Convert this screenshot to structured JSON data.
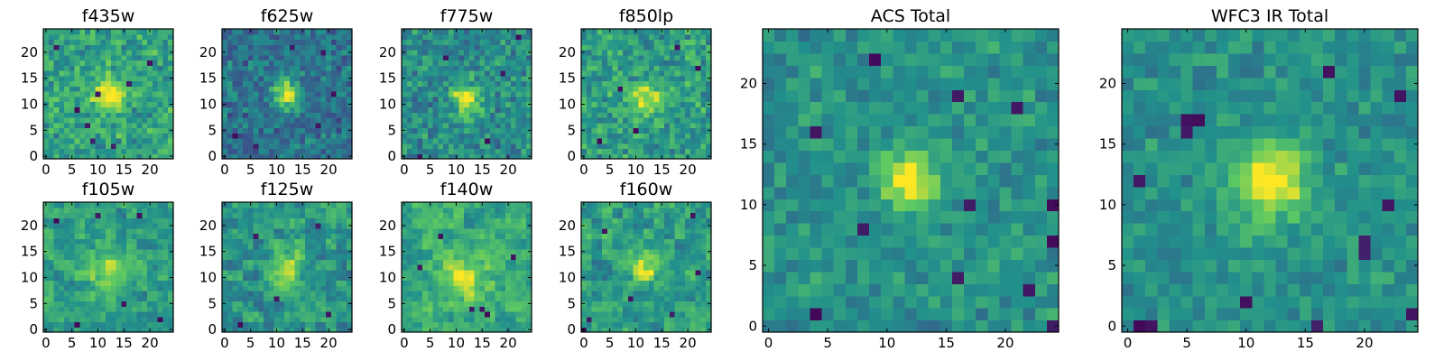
{
  "figure": {
    "kind": "image-cutout grid (pixel maps)",
    "colormap": "viridis",
    "colormap_stops": [
      "#440154",
      "#3b528b",
      "#21918c",
      "#5ec962",
      "#fde725"
    ]
  },
  "chart_data": [
    {
      "type": "heatmap",
      "id": "f435w",
      "title": "f435w",
      "size": "small",
      "grid_size": 25,
      "xlim": [
        -0.5,
        24.5
      ],
      "ylim": [
        -0.5,
        24.5
      ],
      "xticks": [
        0,
        5,
        10,
        15,
        20
      ],
      "yticks": [
        0,
        5,
        10,
        15,
        20
      ],
      "source": {
        "center": [
          12,
          12
        ],
        "sigma": 2.0,
        "peak": 0.45
      },
      "background": {
        "mean": 0.58,
        "noise": 0.22,
        "cell": 1,
        "seed": 11
      },
      "dark_pixels": [
        [
          9,
          3
        ],
        [
          13,
          2
        ],
        [
          10,
          12
        ],
        [
          16,
          14
        ],
        [
          6,
          9
        ],
        [
          20,
          18
        ],
        [
          2,
          21
        ],
        [
          8,
          6
        ]
      ]
    },
    {
      "type": "heatmap",
      "id": "f625w",
      "title": "f625w",
      "size": "small",
      "grid_size": 25,
      "xlim": [
        -0.5,
        24.5
      ],
      "ylim": [
        -0.5,
        24.5
      ],
      "xticks": [
        0,
        5,
        10,
        15,
        20
      ],
      "yticks": [
        0,
        5,
        10,
        15,
        20
      ],
      "source": {
        "center": [
          12,
          12
        ],
        "sigma": 1.8,
        "peak": 0.55
      },
      "background": {
        "mean": 0.38,
        "noise": 0.2,
        "cell": 1,
        "seed": 23
      },
      "dark_pixels": [
        [
          13,
          21
        ],
        [
          19,
          20
        ],
        [
          6,
          2
        ],
        [
          2,
          4
        ],
        [
          18,
          6
        ],
        [
          21,
          12
        ]
      ]
    },
    {
      "type": "heatmap",
      "id": "f775w",
      "title": "f775w",
      "size": "small",
      "grid_size": 25,
      "xlim": [
        -0.5,
        24.5
      ],
      "ylim": [
        -0.5,
        24.5
      ],
      "xticks": [
        0,
        5,
        10,
        15,
        20
      ],
      "yticks": [
        0,
        5,
        10,
        15,
        20
      ],
      "source": {
        "center": [
          12,
          11
        ],
        "sigma": 2.0,
        "peak": 0.5
      },
      "background": {
        "mean": 0.48,
        "noise": 0.22,
        "cell": 1,
        "seed": 37
      },
      "dark_pixels": [
        [
          22,
          23
        ],
        [
          16,
          3
        ],
        [
          3,
          0
        ],
        [
          19,
          16
        ],
        [
          8,
          19
        ]
      ]
    },
    {
      "type": "heatmap",
      "id": "f850lp",
      "title": "f850lp",
      "size": "small",
      "grid_size": 25,
      "xlim": [
        -0.5,
        24.5
      ],
      "ylim": [
        -0.5,
        24.5
      ],
      "xticks": [
        0,
        5,
        10,
        15,
        20
      ],
      "yticks": [
        0,
        5,
        10,
        15,
        20
      ],
      "source": {
        "center": [
          12,
          11
        ],
        "sigma": 2.2,
        "peak": 0.35
      },
      "background": {
        "mean": 0.55,
        "noise": 0.22,
        "cell": 1,
        "seed": 41
      },
      "dark_pixels": [
        [
          7,
          13
        ],
        [
          22,
          17
        ],
        [
          10,
          5
        ],
        [
          3,
          3
        ],
        [
          18,
          21
        ]
      ]
    },
    {
      "type": "heatmap",
      "id": "f105w",
      "title": "f105w",
      "size": "small",
      "grid_size": 25,
      "xlim": [
        -0.5,
        24.5
      ],
      "ylim": [
        -0.5,
        24.5
      ],
      "xticks": [
        0,
        5,
        10,
        15,
        20
      ],
      "yticks": [
        0,
        5,
        10,
        15,
        20
      ],
      "source": {
        "center": [
          12,
          12
        ],
        "sigma": 3.0,
        "peak": 0.3
      },
      "background": {
        "mean": 0.55,
        "noise": 0.18,
        "cell": 2,
        "seed": 53
      },
      "dark_pixels": [
        [
          2,
          21
        ],
        [
          18,
          22
        ],
        [
          22,
          2
        ],
        [
          6,
          1
        ],
        [
          15,
          5
        ],
        [
          10,
          22
        ]
      ]
    },
    {
      "type": "heatmap",
      "id": "f125w",
      "title": "f125w",
      "size": "small",
      "grid_size": 25,
      "xlim": [
        -0.5,
        24.5
      ],
      "ylim": [
        -0.5,
        24.5
      ],
      "xticks": [
        0,
        5,
        10,
        15,
        20
      ],
      "yticks": [
        0,
        5,
        10,
        15,
        20
      ],
      "source": {
        "center": [
          12,
          12
        ],
        "sigma": 2.4,
        "peak": 0.4
      },
      "background": {
        "mean": 0.52,
        "noise": 0.2,
        "cell": 2,
        "seed": 67
      },
      "dark_pixels": [
        [
          6,
          18
        ],
        [
          18,
          20
        ],
        [
          3,
          1
        ],
        [
          20,
          3
        ],
        [
          10,
          6
        ]
      ]
    },
    {
      "type": "heatmap",
      "id": "f140w",
      "title": "f140w",
      "size": "small",
      "grid_size": 25,
      "xlim": [
        -0.5,
        24.5
      ],
      "ylim": [
        -0.5,
        24.5
      ],
      "xticks": [
        0,
        5,
        10,
        15,
        20
      ],
      "yticks": [
        0,
        5,
        10,
        15,
        20
      ],
      "source": {
        "center": [
          12,
          10
        ],
        "sigma": 3.2,
        "peak": 0.3
      },
      "background": {
        "mean": 0.6,
        "noise": 0.18,
        "cell": 2,
        "seed": 71
      },
      "dark_pixels": [
        [
          13,
          4
        ],
        [
          15,
          4
        ],
        [
          16,
          3
        ],
        [
          3,
          12
        ],
        [
          21,
          14
        ],
        [
          7,
          18
        ]
      ]
    },
    {
      "type": "heatmap",
      "id": "f160w",
      "title": "f160w",
      "size": "small",
      "grid_size": 25,
      "xlim": [
        -0.5,
        24.5
      ],
      "ylim": [
        -0.5,
        24.5
      ],
      "xticks": [
        0,
        5,
        10,
        15,
        20
      ],
      "yticks": [
        0,
        5,
        10,
        15,
        20
      ],
      "source": {
        "center": [
          12,
          12
        ],
        "sigma": 2.0,
        "peak": 0.4
      },
      "background": {
        "mean": 0.55,
        "noise": 0.2,
        "cell": 2,
        "seed": 83
      },
      "dark_pixels": [
        [
          0,
          0
        ],
        [
          1,
          2
        ],
        [
          21,
          22
        ],
        [
          17,
          3
        ],
        [
          9,
          6
        ],
        [
          22,
          11
        ],
        [
          4,
          19
        ]
      ]
    },
    {
      "type": "heatmap",
      "id": "acs-total",
      "title": "ACS Total",
      "size": "large",
      "grid_size": 25,
      "xlim": [
        -0.5,
        24.5
      ],
      "ylim": [
        -0.5,
        24.5
      ],
      "xticks": [
        0,
        5,
        10,
        15,
        20
      ],
      "yticks": [
        0,
        5,
        10,
        15,
        20
      ],
      "source": {
        "center": [
          12,
          12
        ],
        "sigma": 1.6,
        "peak": 0.55
      },
      "background": {
        "mean": 0.5,
        "noise": 0.16,
        "cell": 1,
        "seed": 97
      },
      "dark_pixels": [
        [
          9,
          22
        ],
        [
          16,
          19
        ],
        [
          21,
          18
        ],
        [
          17,
          10
        ],
        [
          24,
          10
        ],
        [
          4,
          16
        ],
        [
          8,
          8
        ],
        [
          16,
          4
        ],
        [
          24,
          0
        ],
        [
          4,
          1
        ],
        [
          22,
          3
        ],
        [
          24,
          7
        ]
      ]
    },
    {
      "type": "heatmap",
      "id": "wfc3-ir-total",
      "title": "WFC3 IR Total",
      "size": "large",
      "grid_size": 25,
      "xlim": [
        -0.5,
        24.5
      ],
      "ylim": [
        -0.5,
        24.5
      ],
      "xticks": [
        0,
        5,
        10,
        15,
        20
      ],
      "yticks": [
        0,
        5,
        10,
        15,
        20
      ],
      "source": {
        "center": [
          12,
          12
        ],
        "sigma": 2.3,
        "peak": 0.5
      },
      "background": {
        "mean": 0.5,
        "noise": 0.14,
        "cell": 1,
        "seed": 109
      },
      "dark_pixels": [
        [
          5,
          17
        ],
        [
          6,
          17
        ],
        [
          5,
          16
        ],
        [
          1,
          12
        ],
        [
          22,
          10
        ],
        [
          20,
          7
        ],
        [
          20,
          6
        ],
        [
          24,
          1
        ],
        [
          1,
          0
        ],
        [
          2,
          0
        ],
        [
          16,
          0
        ],
        [
          10,
          2
        ],
        [
          23,
          19
        ],
        [
          17,
          21
        ]
      ]
    }
  ]
}
